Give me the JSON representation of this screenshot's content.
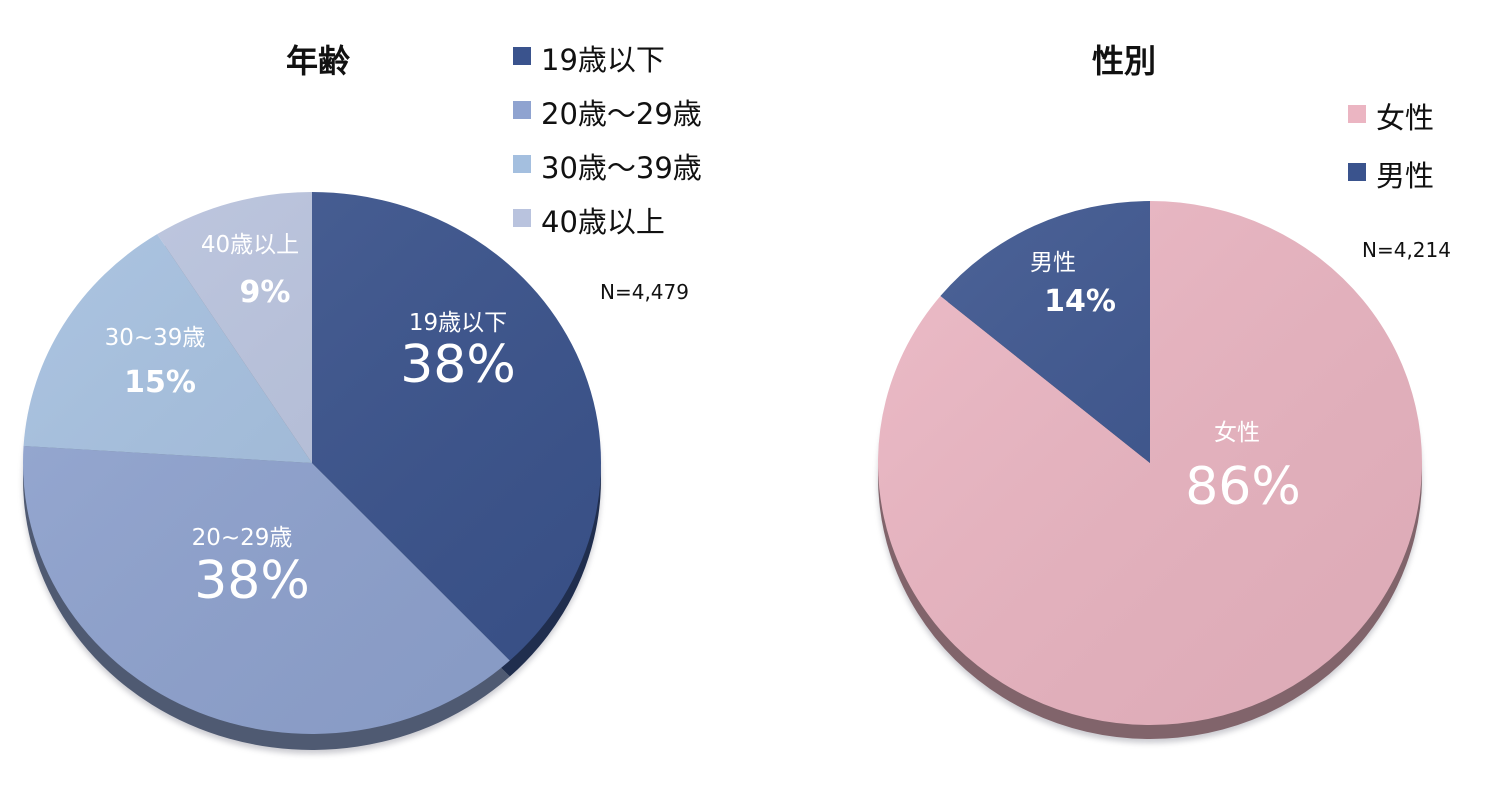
{
  "chart_data": [
    {
      "type": "pie",
      "title": "年齢",
      "n_label": "N=4,479",
      "legend": [
        "19歳以下",
        "20歳〜29歳",
        "30歳〜39歳",
        "40歳以上"
      ],
      "slices": [
        {
          "label": "19歳以下",
          "slice_label": "19歳以下",
          "value": 38,
          "value_label": "38%",
          "color": "#3a538d"
        },
        {
          "label": "20歳〜29歳",
          "slice_label": "20~29歳",
          "value": 38,
          "value_label": "38%",
          "color": "#8fa3d0"
        },
        {
          "label": "30歳〜39歳",
          "slice_label": "30~39歳",
          "value": 15,
          "value_label": "15%",
          "color": "#a4bfdf"
        },
        {
          "label": "40歳以上",
          "slice_label": "40歳以上",
          "value": 9,
          "value_label": "9%",
          "color": "#b9c3de"
        }
      ]
    },
    {
      "type": "pie",
      "title": "性別",
      "n_label": "N=4,214",
      "legend": [
        "女性",
        "男性"
      ],
      "slices": [
        {
          "label": "女性",
          "slice_label": "女性",
          "value": 86,
          "value_label": "86%",
          "color": "#ebb5c2"
        },
        {
          "label": "男性",
          "slice_label": "男性",
          "value": 14,
          "value_label": "14%",
          "color": "#3a538d"
        }
      ]
    }
  ]
}
